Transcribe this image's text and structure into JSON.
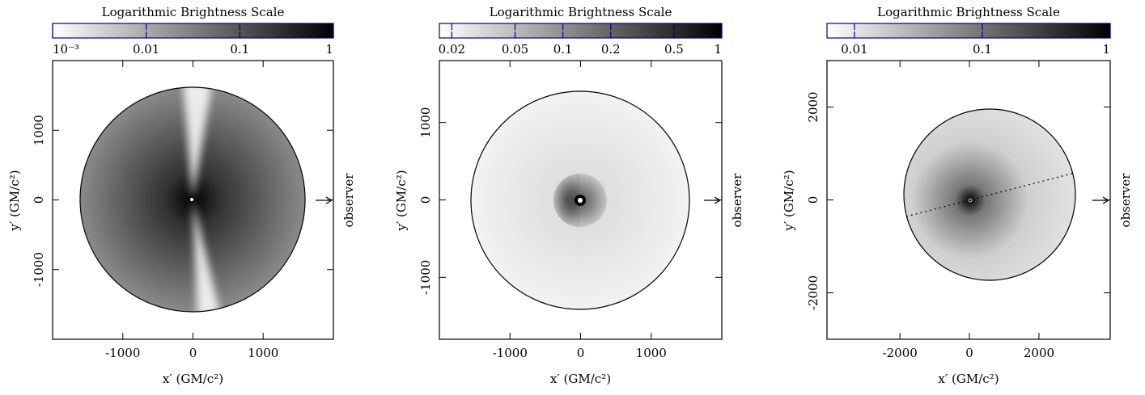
{
  "chart_data": [
    {
      "type": "image",
      "title": "Logarithmic Brightness Scale",
      "xlabel": "x′ (GM/c²)",
      "ylabel": "y′ (GM/c²)",
      "annotation": "observer",
      "xlim": [
        -2000,
        2000
      ],
      "ylim": [
        -2000,
        2000
      ],
      "xticks": [
        -1000,
        0,
        1000
      ],
      "yticks": [
        -1000,
        0,
        1000
      ],
      "colorbar": {
        "scale": "log",
        "lim": [
          0.001,
          1
        ],
        "ticks": [
          {
            "value": 0.001,
            "label": "10⁻³"
          },
          0.01,
          0.1,
          1
        ]
      }
    },
    {
      "type": "image",
      "title": "Logarithmic Brightness Scale",
      "xlabel": "x′ (GM/c²)",
      "ylabel": "y′ (GM/c²)",
      "annotation": "observer",
      "xlim": [
        -2000,
        2000
      ],
      "ylim": [
        -1800,
        1800
      ],
      "xticks": [
        -1000,
        0,
        1000
      ],
      "yticks": [
        -1000,
        0,
        1000
      ],
      "colorbar": {
        "scale": "log",
        "lim": [
          0.0167,
          1
        ],
        "ticks": [
          0.02,
          0.05,
          0.1,
          0.2,
          0.5,
          1
        ]
      }
    },
    {
      "type": "image",
      "title": "Logarithmic Brightness Scale",
      "xlabel": "x′ (GM/c²)",
      "ylabel": "y′ (GM/c²)",
      "annotation": "observer",
      "xlim": [
        -4100,
        4050
      ],
      "ylim": [
        -3000,
        3000
      ],
      "xticks": [
        -2000,
        0,
        2000
      ],
      "yticks": [
        -2000,
        0,
        2000
      ],
      "colorbar": {
        "scale": "log",
        "lim": [
          0.0061,
          1
        ],
        "ticks": [
          0.01,
          0.1,
          1
        ]
      }
    }
  ]
}
